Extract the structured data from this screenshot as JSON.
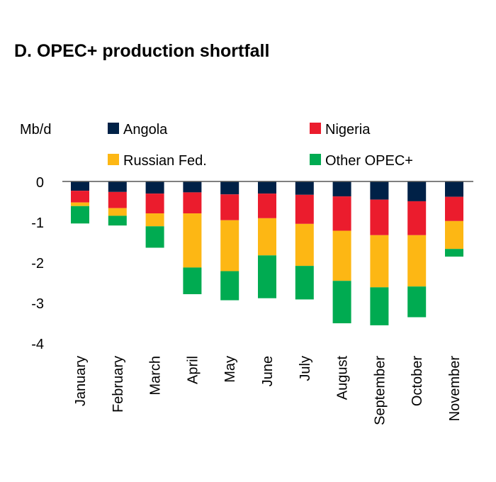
{
  "chart_data": {
    "type": "bar",
    "stacked": true,
    "title": "D. OPEC+ production shortfall",
    "ylabel": "Mb/d",
    "xlabel": "",
    "ylim": [
      -4,
      0
    ],
    "yticks": [
      0,
      -1,
      -2,
      -3,
      -4
    ],
    "grid": false,
    "legend_position": "top",
    "categories": [
      "January",
      "February",
      "March",
      "April",
      "May",
      "June",
      "July",
      "August",
      "September",
      "October",
      "November"
    ],
    "series": [
      {
        "name": "Angola",
        "color": "#002147",
        "values": [
          -0.23,
          -0.26,
          -0.3,
          -0.27,
          -0.32,
          -0.3,
          -0.33,
          -0.37,
          -0.45,
          -0.49,
          -0.38
        ]
      },
      {
        "name": "Nigeria",
        "color": "#EB1C2D",
        "values": [
          -0.29,
          -0.4,
          -0.49,
          -0.52,
          -0.64,
          -0.61,
          -0.72,
          -0.85,
          -0.88,
          -0.84,
          -0.6
        ]
      },
      {
        "name": "Russian Fed.",
        "color": "#FDB714",
        "values": [
          -0.09,
          -0.19,
          -0.32,
          -1.34,
          -1.26,
          -0.92,
          -1.04,
          -1.24,
          -1.29,
          -1.27,
          -0.69
        ]
      },
      {
        "name": "Other OPEC+",
        "color": "#00AB51",
        "values": [
          -0.43,
          -0.24,
          -0.53,
          -0.66,
          -0.72,
          -1.06,
          -0.83,
          -1.05,
          -0.94,
          -0.76,
          -0.19
        ]
      }
    ]
  }
}
